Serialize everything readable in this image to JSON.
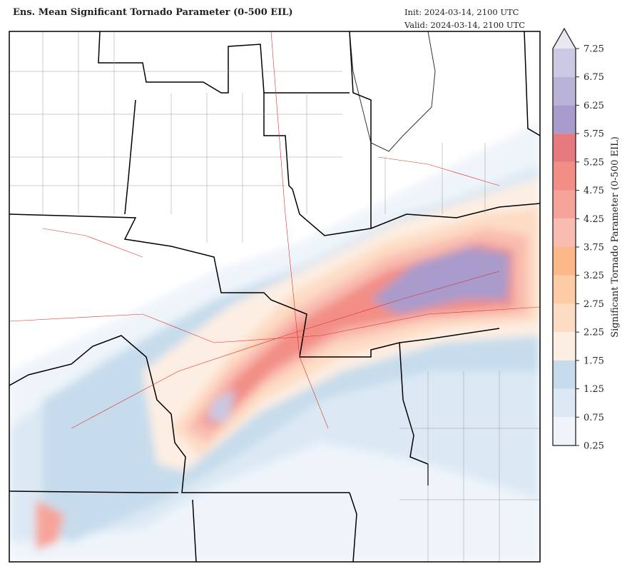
{
  "header": {
    "title": "Ens. Mean Significant Tornado Parameter (0-500 EIL)",
    "init": "Init:  2024-03-14, 2100 UTC",
    "valid": "Valid: 2024-03-14, 2100 UTC"
  },
  "colorbar": {
    "label": "Significant Tornado Parameter (0-500 EIL)",
    "lim": [
      0.25,
      7.25
    ],
    "ticks": [
      0.25,
      0.75,
      1.25,
      1.75,
      2.25,
      2.75,
      3.25,
      3.75,
      4.25,
      4.75,
      5.25,
      5.75,
      6.25,
      6.75,
      7.25
    ],
    "colors": [
      "#eef4fa",
      "#dce9f4",
      "#c6dcec",
      "#fdeee3",
      "#fddcc4",
      "#fdcca6",
      "#fbb989",
      "#f9bcb0",
      "#f6a499",
      "#f28e86",
      "#e67a7e",
      "#a99bcb",
      "#b9b3d7",
      "#cac8e2"
    ],
    "extend_color": "#e9e8f2"
  }
}
